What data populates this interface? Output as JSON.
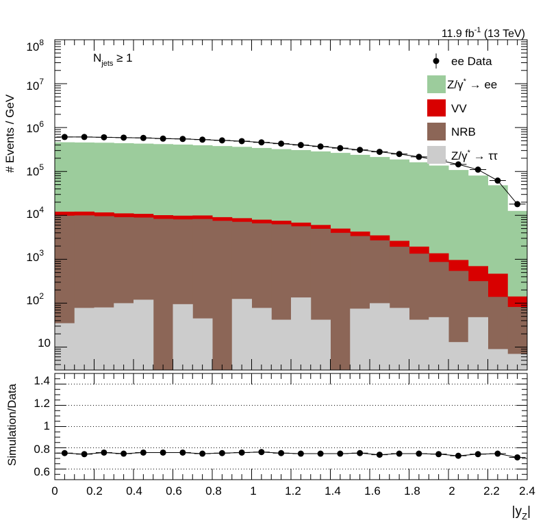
{
  "lumi": {
    "main": "11.9 fb",
    "sup": "-1",
    "energy": " (13 TeV)"
  },
  "selection": {
    "n": "N",
    "sub": "jets",
    "cut": " ≥ 1"
  },
  "legend": {
    "data": "ee Data",
    "zee": {
      "pre": "Z/γ",
      "sup": "*",
      "post": " → ee"
    },
    "vv": "VV",
    "nrb": "NRB",
    "ztt": {
      "pre": "Z/γ",
      "sup": "*",
      "post": " → ττ"
    }
  },
  "top_ytick_labels": [
    "10",
    "10",
    "10",
    "10",
    "10",
    "10",
    "10",
    "10"
  ],
  "top_ytick_exps": [
    "",
    "2",
    "3",
    "4",
    "5",
    "6",
    "7",
    "8"
  ],
  "bottom_ytick_labels": [
    "0.6",
    "0.8",
    "1",
    "1.2",
    "1.4"
  ],
  "xtick_labels": [
    "0",
    "0.2",
    "0.4",
    "0.6",
    "0.8",
    "1",
    "1.2",
    "1.4",
    "1.6",
    "1.8",
    "2",
    "2.2",
    "2.4"
  ],
  "axis": {
    "top_ylabel": "# Events / GeV",
    "bottom_ylabel": "Simulation/Data",
    "xlabel": {
      "main": "|y",
      "sub": "Z",
      "end": "|"
    }
  },
  "colors": {
    "zee": "#9ccc9c",
    "vv": "#d80000",
    "nrb": "#8c6657",
    "ztt": "#cccccc",
    "data": "#000000"
  },
  "chart_data": [
    {
      "type": "bar",
      "stacked": true,
      "log_y": true,
      "x_bin_low_edges": [
        0.0,
        0.1,
        0.2,
        0.3,
        0.4,
        0.5,
        0.6,
        0.7,
        0.8,
        0.9,
        1.0,
        1.1,
        1.2,
        1.3,
        1.4,
        1.5,
        1.6,
        1.7,
        1.8,
        1.9,
        2.0,
        2.1,
        2.2,
        2.3
      ],
      "bin_width": 0.1,
      "ylim": [
        3,
        100000000
      ],
      "xlim": [
        0,
        2.4
      ],
      "series": [
        {
          "name": "Z/γ* → ττ",
          "values": [
            35,
            78,
            80,
            100,
            120,
            0,
            95,
            45,
            0,
            125,
            78,
            42,
            135,
            42,
            0,
            75,
            100,
            78,
            42,
            48,
            13,
            48,
            9,
            7
          ]
        },
        {
          "name": "NRB",
          "values": [
            9800,
            9900,
            9500,
            9000,
            8800,
            8300,
            8000,
            8200,
            7500,
            7000,
            6500,
            6200,
            5500,
            4900,
            4000,
            3300,
            2600,
            1850,
            1300,
            820,
            530,
            270,
            130,
            75
          ]
        },
        {
          "name": "VV",
          "values": [
            2300,
            2200,
            2100,
            2000,
            1900,
            1800,
            1750,
            1700,
            1600,
            1500,
            1400,
            1300,
            1200,
            1100,
            1000,
            900,
            800,
            700,
            600,
            500,
            420,
            380,
            330,
            60
          ]
        },
        {
          "name": "Z/γ* → ee",
          "values": [
            450000,
            445000,
            440000,
            430000,
            420000,
            410000,
            400000,
            385000,
            370000,
            355000,
            335000,
            315000,
            300000,
            280000,
            260000,
            235000,
            210000,
            185000,
            160000,
            135000,
            107000,
            80000,
            48000,
            12500
          ]
        }
      ],
      "data_points": {
        "name": "ee Data",
        "x": [
          0.05,
          0.15,
          0.25,
          0.35,
          0.45,
          0.55,
          0.65,
          0.75,
          0.85,
          0.95,
          1.05,
          1.15,
          1.25,
          1.35,
          1.45,
          1.55,
          1.65,
          1.75,
          1.85,
          1.95,
          2.05,
          2.15,
          2.25,
          2.35
        ],
        "y": [
          610000,
          610000,
          600000,
          590000,
          580000,
          560000,
          550000,
          530000,
          510000,
          490000,
          460000,
          430000,
          400000,
          370000,
          340000,
          310000,
          280000,
          250000,
          215000,
          180000,
          145000,
          110000,
          62000,
          18000
        ]
      },
      "ylabel": "# Events / GeV"
    },
    {
      "type": "scatter",
      "ylim": [
        0.5,
        1.5
      ],
      "xlim": [
        0,
        2.4
      ],
      "x": [
        0.05,
        0.15,
        0.25,
        0.35,
        0.45,
        0.55,
        0.65,
        0.75,
        0.85,
        0.95,
        1.05,
        1.15,
        1.25,
        1.35,
        1.45,
        1.55,
        1.65,
        1.75,
        1.85,
        1.95,
        2.05,
        2.15,
        2.25,
        2.35
      ],
      "y": [
        0.75,
        0.74,
        0.755,
        0.745,
        0.755,
        0.755,
        0.755,
        0.745,
        0.75,
        0.755,
        0.76,
        0.75,
        0.745,
        0.745,
        0.745,
        0.75,
        0.735,
        0.745,
        0.745,
        0.74,
        0.725,
        0.74,
        0.745,
        0.71
      ],
      "reference_lines": [
        0.6,
        0.8,
        1.0,
        1.2,
        1.4
      ],
      "ylabel": "Simulation/Data",
      "xlabel": "|yZ|"
    }
  ]
}
